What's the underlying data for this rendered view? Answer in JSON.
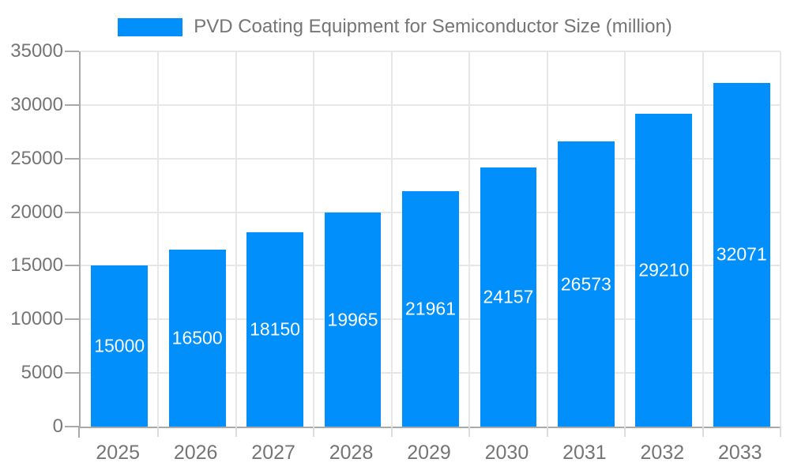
{
  "legend": {
    "label": "PVD Coating Equipment for Semiconductor Size (million)"
  },
  "chart_data": {
    "type": "bar",
    "title": "PVD Coating Equipment for Semiconductor Size (million)",
    "categories": [
      "2025",
      "2026",
      "2027",
      "2028",
      "2029",
      "2030",
      "2031",
      "2032",
      "2033"
    ],
    "values": [
      15000,
      16500,
      18150,
      19965,
      21961,
      24157,
      26573,
      29210,
      32071
    ],
    "xlabel": "",
    "ylabel": "",
    "ylim": [
      0,
      35000
    ],
    "ytick_step": 5000,
    "yticks": [
      0,
      5000,
      10000,
      15000,
      20000,
      25000,
      30000,
      35000
    ],
    "grid": true,
    "legend_position": "top-center",
    "value_label_position": "inside-center",
    "colors": {
      "bar": "#008FFB",
      "grid": "#e7e7e7",
      "axis": "#a9a9a9",
      "x_tick": "#dcdcdc",
      "text": "#757575",
      "value_text": "#ffffff",
      "background": "#ffffff"
    }
  }
}
